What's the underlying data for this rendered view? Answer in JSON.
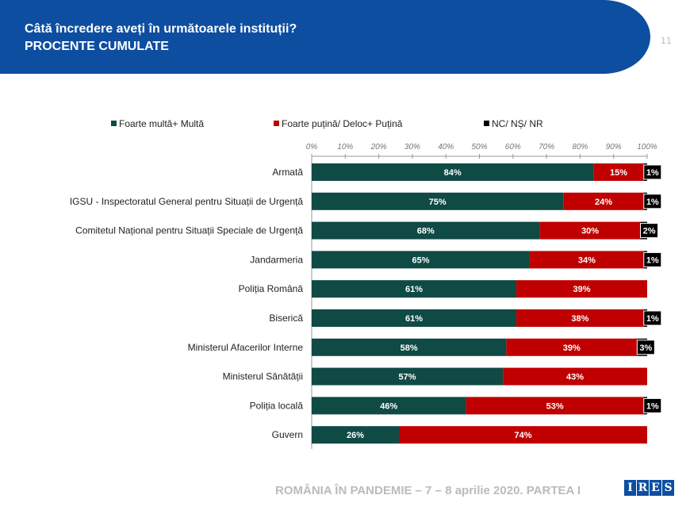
{
  "header": {
    "title_line1": "Câtă încredere aveți în următoarele instituții?",
    "title_line2": "PROCENTE CUMULATE",
    "page_number": "11"
  },
  "footer": {
    "text": "ROMÂNIA ÎN PANDEMIE – 7 – 8 aprilie 2020. PARTEA I",
    "logo": "IRES"
  },
  "chart_data": {
    "type": "bar",
    "orientation": "horizontal",
    "stacked": true,
    "categories": [
      "Armată",
      "IGSU - Inspectoratul General pentru Situații de Urgență",
      "Comitetul Național pentru Situații Speciale de Urgență",
      "Jandarmeria",
      "Poliția Română",
      "Biserică",
      "Ministerul Afacerilor Interne",
      "Ministerul Sănătății",
      "Poliția locală",
      "Guvern"
    ],
    "series": [
      {
        "name": "Foarte multă+ Multă",
        "color": "#0f4a44",
        "values": [
          84,
          75,
          68,
          65,
          61,
          61,
          58,
          57,
          46,
          26
        ]
      },
      {
        "name": "Foarte puțină/ Deloc+ Puțină",
        "color": "#c00000",
        "values": [
          15,
          24,
          30,
          34,
          39,
          38,
          39,
          43,
          53,
          74
        ]
      },
      {
        "name": "NC/ NȘ/ NR",
        "color": "#000000",
        "values": [
          1,
          1,
          2,
          1,
          0,
          1,
          3,
          0,
          1,
          0
        ]
      }
    ],
    "xticks": [
      "0%",
      "10%",
      "20%",
      "30%",
      "40%",
      "50%",
      "60%",
      "70%",
      "80%",
      "90%",
      "100%"
    ],
    "xlim": [
      0,
      100
    ],
    "legend": "top"
  }
}
